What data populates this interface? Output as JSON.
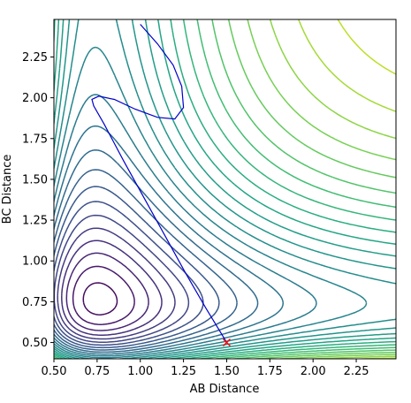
{
  "chart_data": {
    "type": "contour",
    "title": "",
    "xlabel": "AB Distance",
    "ylabel": "BC Distance",
    "xlim": [
      0.5,
      2.48
    ],
    "ylim": [
      0.4,
      2.48
    ],
    "xticks": [
      0.5,
      0.75,
      1.0,
      1.25,
      1.5,
      1.75,
      2.0,
      2.25
    ],
    "yticks": [
      0.5,
      0.75,
      1.0,
      1.25,
      1.5,
      1.75,
      2.0,
      2.25
    ],
    "xtick_labels": [
      "0.50",
      "0.75",
      "1.00",
      "1.25",
      "1.50",
      "1.75",
      "2.00",
      "2.25"
    ],
    "ytick_labels": [
      "0.50",
      "0.75",
      "1.00",
      "1.25",
      "1.50",
      "1.75",
      "2.00",
      "2.25"
    ],
    "colormap": "viridis",
    "contour_levels_approx": 30,
    "grid": false,
    "legend": "none",
    "trajectory": {
      "color": "#0000cc",
      "x": [
        1.5,
        1.38,
        1.26,
        1.14,
        1.02,
        0.9,
        0.79,
        0.73,
        0.72,
        0.76,
        0.85,
        0.97,
        1.1,
        1.2,
        1.25,
        1.24,
        1.19,
        1.1,
        1.0
      ],
      "y": [
        0.5,
        0.71,
        0.93,
        1.16,
        1.39,
        1.62,
        1.84,
        1.95,
        1.99,
        2.01,
        1.99,
        1.93,
        1.88,
        1.87,
        1.94,
        2.07,
        2.2,
        2.33,
        2.45
      ]
    },
    "start_marker": {
      "x": 1.5,
      "y": 0.5,
      "marker": "x",
      "color": "#ff0000"
    }
  }
}
